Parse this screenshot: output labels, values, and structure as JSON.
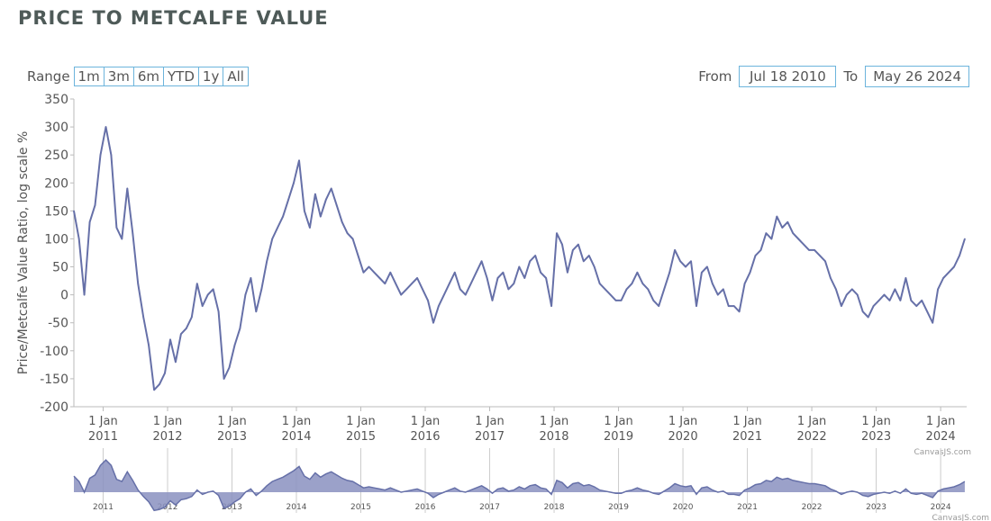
{
  "title": "PRICE TO METCALFE VALUE",
  "range": {
    "label": "Range",
    "buttons": [
      "1m",
      "3m",
      "6m",
      "YTD",
      "1y",
      "All"
    ]
  },
  "from": {
    "label": "From",
    "value": "Jul 18 2010"
  },
  "to": {
    "label": "To",
    "value": "May 26 2024"
  },
  "credit": "CanvasJS.com",
  "colors": {
    "line": "#6670a8",
    "fill": "#8990bf",
    "button_border": "#6cb4dc"
  },
  "chart_data": {
    "type": "line",
    "title": "PRICE TO METCALFE VALUE",
    "ylabel": "Price/Metcalfe Value Ratio, log scale %",
    "ylim": [
      -200,
      350
    ],
    "yticks": [
      350,
      300,
      250,
      200,
      150,
      100,
      50,
      0,
      -50,
      -100,
      -150,
      -200
    ],
    "xticks": [
      {
        "line1": "1 Jan",
        "line2": "2011"
      },
      {
        "line1": "1 Jan",
        "line2": "2012"
      },
      {
        "line1": "1 Jan",
        "line2": "2013"
      },
      {
        "line1": "1 Jan",
        "line2": "2014"
      },
      {
        "line1": "1 Jan",
        "line2": "2015"
      },
      {
        "line1": "1 Jan",
        "line2": "2016"
      },
      {
        "line1": "1 Jan",
        "line2": "2017"
      },
      {
        "line1": "1 Jan",
        "line2": "2018"
      },
      {
        "line1": "1 Jan",
        "line2": "2019"
      },
      {
        "line1": "1 Jan",
        "line2": "2020"
      },
      {
        "line1": "1 Jan",
        "line2": "2021"
      },
      {
        "line1": "1 Jan",
        "line2": "2022"
      },
      {
        "line1": "1 Jan",
        "line2": "2023"
      },
      {
        "line1": "1 Jan",
        "line2": "2024"
      }
    ],
    "navigator_labels": [
      "2011",
      "2012",
      "2013",
      "2014",
      "2015",
      "2016",
      "2017",
      "2018",
      "2019",
      "2020",
      "2021",
      "2022",
      "2023",
      "2024"
    ],
    "x_start": "2010-07",
    "x_end": "2024-05",
    "values": [
      150,
      100,
      0,
      130,
      160,
      250,
      300,
      250,
      120,
      100,
      190,
      110,
      20,
      -40,
      -90,
      -170,
      -160,
      -140,
      -80,
      -120,
      -70,
      -60,
      -40,
      20,
      -20,
      0,
      10,
      -30,
      -150,
      -130,
      -90,
      -60,
      0,
      30,
      -30,
      10,
      60,
      100,
      120,
      140,
      170,
      200,
      240,
      150,
      120,
      180,
      140,
      170,
      190,
      160,
      130,
      110,
      100,
      70,
      40,
      50,
      40,
      30,
      20,
      40,
      20,
      0,
      10,
      20,
      30,
      10,
      -10,
      -50,
      -20,
      0,
      20,
      40,
      10,
      0,
      20,
      40,
      60,
      30,
      -10,
      30,
      40,
      10,
      20,
      50,
      30,
      60,
      70,
      40,
      30,
      -20,
      110,
      90,
      40,
      80,
      90,
      60,
      70,
      50,
      20,
      10,
      0,
      -10,
      -10,
      10,
      20,
      40,
      20,
      10,
      -10,
      -20,
      10,
      40,
      80,
      60,
      50,
      60,
      -20,
      40,
      50,
      20,
      0,
      10,
      -20,
      -20,
      -30,
      20,
      40,
      70,
      80,
      110,
      100,
      140,
      120,
      130,
      110,
      100,
      90,
      80,
      80,
      70,
      60,
      30,
      10,
      -20,
      0,
      10,
      0,
      -30,
      -40,
      -20,
      -10,
      0,
      -10,
      10,
      -10,
      30,
      -10,
      -20,
      -10,
      -30,
      -50,
      10,
      30,
      40,
      50,
      70,
      100
    ]
  }
}
